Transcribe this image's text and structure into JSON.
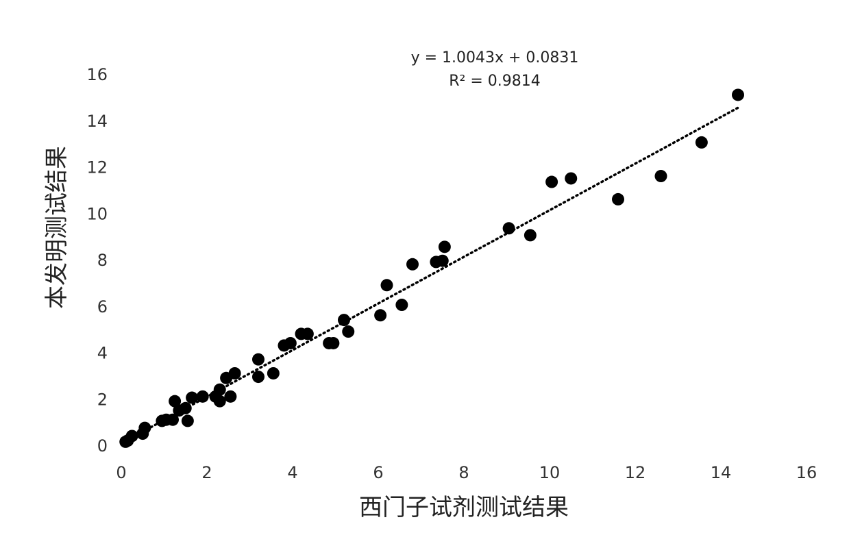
{
  "chart_data": {
    "type": "scatter",
    "xlabel": "西门子试剂测试结果",
    "ylabel": "本发明测试结果",
    "xlim": [
      0,
      16
    ],
    "ylim": [
      0,
      16
    ],
    "x_ticks": [
      "0",
      "2",
      "4",
      "6",
      "8",
      "10",
      "12",
      "14",
      "16"
    ],
    "y_ticks": [
      "0",
      "2",
      "4",
      "6",
      "8",
      "10",
      "12",
      "14",
      "16"
    ],
    "grid": false,
    "legend": "none",
    "marker_color": "#000000",
    "trendline": {
      "style": "dotted",
      "slope": 1.0043,
      "intercept": 0.0831,
      "equation": "y = 1.0043x + 0.0831",
      "r_squared_label": "R² = 0.9814"
    },
    "points": [
      {
        "x": 0.1,
        "y": 0.15
      },
      {
        "x": 0.15,
        "y": 0.2
      },
      {
        "x": 0.25,
        "y": 0.4
      },
      {
        "x": 0.5,
        "y": 0.5
      },
      {
        "x": 0.55,
        "y": 0.75
      },
      {
        "x": 0.95,
        "y": 1.05
      },
      {
        "x": 1.05,
        "y": 1.1
      },
      {
        "x": 1.2,
        "y": 1.1
      },
      {
        "x": 1.25,
        "y": 1.9
      },
      {
        "x": 1.35,
        "y": 1.5
      },
      {
        "x": 1.5,
        "y": 1.6
      },
      {
        "x": 1.55,
        "y": 1.05
      },
      {
        "x": 1.65,
        "y": 2.05
      },
      {
        "x": 1.9,
        "y": 2.1
      },
      {
        "x": 2.2,
        "y": 2.1
      },
      {
        "x": 2.3,
        "y": 1.9
      },
      {
        "x": 2.3,
        "y": 2.4
      },
      {
        "x": 2.45,
        "y": 2.9
      },
      {
        "x": 2.55,
        "y": 2.1
      },
      {
        "x": 2.65,
        "y": 3.1
      },
      {
        "x": 3.2,
        "y": 2.95
      },
      {
        "x": 3.2,
        "y": 3.7
      },
      {
        "x": 3.55,
        "y": 3.1
      },
      {
        "x": 3.8,
        "y": 4.3
      },
      {
        "x": 3.95,
        "y": 4.4
      },
      {
        "x": 4.2,
        "y": 4.8
      },
      {
        "x": 4.35,
        "y": 4.8
      },
      {
        "x": 4.85,
        "y": 4.4
      },
      {
        "x": 4.95,
        "y": 4.4
      },
      {
        "x": 5.2,
        "y": 5.4
      },
      {
        "x": 5.3,
        "y": 4.9
      },
      {
        "x": 6.05,
        "y": 5.6
      },
      {
        "x": 6.2,
        "y": 6.9
      },
      {
        "x": 6.55,
        "y": 6.05
      },
      {
        "x": 6.8,
        "y": 7.8
      },
      {
        "x": 7.35,
        "y": 7.9
      },
      {
        "x": 7.5,
        "y": 7.95
      },
      {
        "x": 7.55,
        "y": 8.55
      },
      {
        "x": 9.05,
        "y": 9.35
      },
      {
        "x": 9.55,
        "y": 9.05
      },
      {
        "x": 10.05,
        "y": 11.35
      },
      {
        "x": 10.5,
        "y": 11.5
      },
      {
        "x": 11.6,
        "y": 10.6
      },
      {
        "x": 12.6,
        "y": 11.6
      },
      {
        "x": 13.55,
        "y": 13.05
      },
      {
        "x": 14.4,
        "y": 15.1
      }
    ]
  }
}
